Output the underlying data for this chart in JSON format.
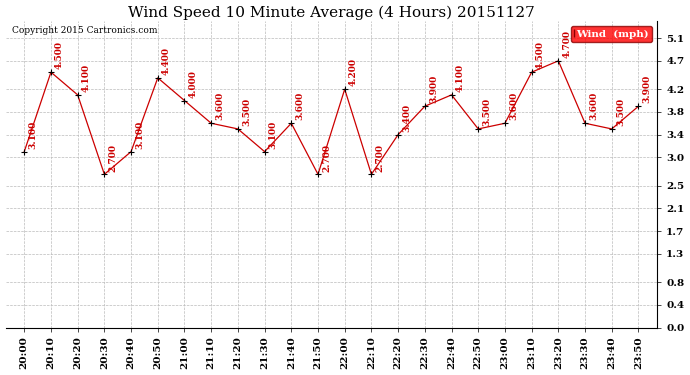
{
  "title": "Wind Speed 10 Minute Average (4 Hours) 20151127",
  "copyright": "Copyright 2015 Cartronics.com",
  "legend_label": "Wind  (mph)",
  "x_labels": [
    "20:00",
    "20:10",
    "20:20",
    "20:30",
    "20:40",
    "20:50",
    "21:00",
    "21:10",
    "21:20",
    "21:30",
    "21:40",
    "21:50",
    "22:00",
    "22:10",
    "22:20",
    "22:30",
    "22:40",
    "22:50",
    "23:00",
    "23:10",
    "23:20",
    "23:30",
    "23:40",
    "23:50"
  ],
  "y_values": [
    3.1,
    4.5,
    4.1,
    2.7,
    3.1,
    4.4,
    4.0,
    3.6,
    3.5,
    3.1,
    3.6,
    2.7,
    4.2,
    2.7,
    3.4,
    3.9,
    4.1,
    3.5,
    3.6,
    4.5,
    4.7,
    3.6,
    3.5,
    3.9
  ],
  "y_ticks": [
    0.0,
    0.4,
    0.8,
    1.3,
    1.7,
    2.1,
    2.5,
    3.0,
    3.4,
    3.8,
    4.2,
    4.7,
    5.1
  ],
  "ylim": [
    0.0,
    5.4
  ],
  "line_color": "#cc0000",
  "marker_color": "#000000",
  "bg_color": "#ffffff",
  "grid_color": "#bbbbbb",
  "title_fontsize": 11,
  "label_fontsize": 7.5,
  "annotation_fontsize": 6.5
}
